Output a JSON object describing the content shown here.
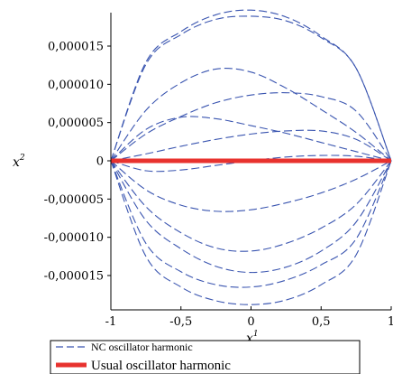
{
  "chart_data": {
    "type": "line",
    "title": "",
    "xlabel": {
      "base": "x",
      "sup": "1"
    },
    "ylabel": {
      "base": "x",
      "sup": "2"
    },
    "xlim": [
      -1,
      1
    ],
    "ylim": [
      -1.9e-05,
      2e-05
    ],
    "x_ticks": [
      {
        "value": -1,
        "label": "-1"
      },
      {
        "value": -0.5,
        "label": "-0,5"
      },
      {
        "value": 0,
        "label": "0"
      },
      {
        "value": 0.5,
        "label": "0,5"
      },
      {
        "value": 1,
        "label": "1"
      }
    ],
    "y_ticks": [
      {
        "value": 1.5e-05,
        "label": "0,000015"
      },
      {
        "value": 1e-05,
        "label": "0,000010"
      },
      {
        "value": 5e-06,
        "label": "0,000005"
      },
      {
        "value": 0,
        "label": "0"
      },
      {
        "value": -5e-06,
        "label": "-0,000005"
      },
      {
        "value": -1e-05,
        "label": "-0,000010"
      },
      {
        "value": -1.5e-05,
        "label": "-0,000015"
      }
    ],
    "series": [
      {
        "name": "NC oscillator harmonic",
        "color": "#3a55b0",
        "style": "dashed",
        "curves": [
          {
            "points": [
              [
                -1,
                0
              ],
              [
                -0.75,
                1.29e-05
              ],
              [
                -0.5,
                1.69e-05
              ],
              [
                -0.25,
                1.91e-05
              ],
              [
                0,
                1.97e-05
              ],
              [
                0.25,
                1.88e-05
              ],
              [
                0.5,
                1.63e-05
              ],
              [
                0.75,
                1.21e-05
              ],
              [
                1,
                0
              ]
            ]
          },
          {
            "points": [
              [
                -1,
                0
              ],
              [
                -0.75,
                1.26e-05
              ],
              [
                -0.5,
                1.65e-05
              ],
              [
                -0.25,
                1.85e-05
              ],
              [
                0,
                1.89e-05
              ],
              [
                0.25,
                1.83e-05
              ],
              [
                0.5,
                1.61e-05
              ],
              [
                0.75,
                1.21e-05
              ],
              [
                1,
                0
              ]
            ]
          },
          {
            "points": [
              [
                -1,
                0
              ],
              [
                -0.75,
                6.6e-06
              ],
              [
                -0.5,
                1.02e-05
              ],
              [
                -0.25,
                1.2e-05
              ],
              [
                0,
                1.16e-05
              ],
              [
                0.25,
                9.5e-06
              ],
              [
                0.5,
                6.7e-06
              ],
              [
                0.75,
                3.7e-06
              ],
              [
                1,
                0
              ]
            ]
          },
          {
            "points": [
              [
                -1,
                0
              ],
              [
                -0.75,
                3.5e-06
              ],
              [
                -0.5,
                5.8e-06
              ],
              [
                -0.25,
                7.6e-06
              ],
              [
                0,
                8.6e-06
              ],
              [
                0.25,
                8.9e-06
              ],
              [
                0.5,
                8.4e-06
              ],
              [
                0.75,
                6.5e-06
              ],
              [
                1,
                0
              ]
            ]
          },
          {
            "points": [
              [
                -1,
                0
              ],
              [
                -0.75,
                4.1e-06
              ],
              [
                -0.5,
                5.7e-06
              ],
              [
                -0.25,
                5.5e-06
              ],
              [
                0,
                4.6e-06
              ],
              [
                0.25,
                3.6e-06
              ],
              [
                0.5,
                2.4e-06
              ],
              [
                0.75,
                1.2e-06
              ],
              [
                1,
                0
              ]
            ]
          },
          {
            "points": [
              [
                -1,
                0
              ],
              [
                -0.75,
                9e-07
              ],
              [
                -0.5,
                1.9e-06
              ],
              [
                -0.25,
                2.8e-06
              ],
              [
                0,
                3.5e-06
              ],
              [
                0.25,
                3.9e-06
              ],
              [
                0.5,
                3.9e-06
              ],
              [
                0.75,
                2.8e-06
              ],
              [
                1,
                0
              ]
            ]
          },
          {
            "points": [
              [
                -1,
                0
              ],
              [
                -0.75,
                -1.3e-06
              ],
              [
                -0.5,
                -1.2e-06
              ],
              [
                -0.25,
                -6e-07
              ],
              [
                0,
                0
              ],
              [
                0.25,
                5e-07
              ],
              [
                0.5,
                7e-07
              ],
              [
                0.75,
                6e-07
              ],
              [
                1,
                0
              ]
            ]
          },
          {
            "points": [
              [
                -1,
                0
              ],
              [
                -0.75,
                -3.8e-06
              ],
              [
                -0.5,
                -5.8e-06
              ],
              [
                -0.25,
                -6.6e-06
              ],
              [
                0,
                -6.4e-06
              ],
              [
                0.25,
                -5.5e-06
              ],
              [
                0.5,
                -4.2e-06
              ],
              [
                0.75,
                -2.4e-06
              ],
              [
                1,
                0
              ]
            ]
          },
          {
            "points": [
              [
                -1,
                0
              ],
              [
                -0.75,
                -6e-06
              ],
              [
                -0.5,
                -9.4e-06
              ],
              [
                -0.25,
                -1.14e-05
              ],
              [
                0,
                -1.18e-05
              ],
              [
                0.25,
                -1.08e-05
              ],
              [
                0.5,
                -8.8e-06
              ],
              [
                0.75,
                -5.7e-06
              ],
              [
                1,
                0
              ]
            ]
          },
          {
            "points": [
              [
                -1,
                0
              ],
              [
                -0.75,
                -7.8e-06
              ],
              [
                -0.5,
                -1.15e-05
              ],
              [
                -0.25,
                -1.38e-05
              ],
              [
                0,
                -1.46e-05
              ],
              [
                0.25,
                -1.39e-05
              ],
              [
                0.5,
                -1.18e-05
              ],
              [
                0.75,
                -8e-06
              ],
              [
                1,
                0
              ]
            ]
          },
          {
            "points": [
              [
                -1,
                0
              ],
              [
                -0.75,
                -1.08e-05
              ],
              [
                -0.5,
                -1.45e-05
              ],
              [
                -0.25,
                -1.62e-05
              ],
              [
                0,
                -1.65e-05
              ],
              [
                0.25,
                -1.56e-05
              ],
              [
                0.5,
                -1.36e-05
              ],
              [
                0.75,
                -1.02e-05
              ],
              [
                1,
                0
              ]
            ]
          },
          {
            "points": [
              [
                -1,
                0
              ],
              [
                -0.75,
                -1.25e-05
              ],
              [
                -0.5,
                -1.65e-05
              ],
              [
                -0.25,
                -1.83e-05
              ],
              [
                0,
                -1.88e-05
              ],
              [
                0.25,
                -1.82e-05
              ],
              [
                0.5,
                -1.62e-05
              ],
              [
                0.75,
                -1.23e-05
              ],
              [
                1,
                0
              ]
            ]
          }
        ]
      },
      {
        "name": "Usual oscillator harmonic",
        "color": "#e8322e",
        "style": "solid",
        "curves": [
          {
            "points": [
              [
                -1,
                0
              ],
              [
                1,
                0
              ]
            ]
          }
        ]
      }
    ],
    "legend": {
      "placement": "bottom-left",
      "entries": [
        {
          "label": "NC oscillator harmonic",
          "color": "#3a55b0",
          "style": "dashed"
        },
        {
          "label": "Usual oscillator harmonic",
          "color": "#e8322e",
          "style": "solid"
        }
      ]
    }
  }
}
